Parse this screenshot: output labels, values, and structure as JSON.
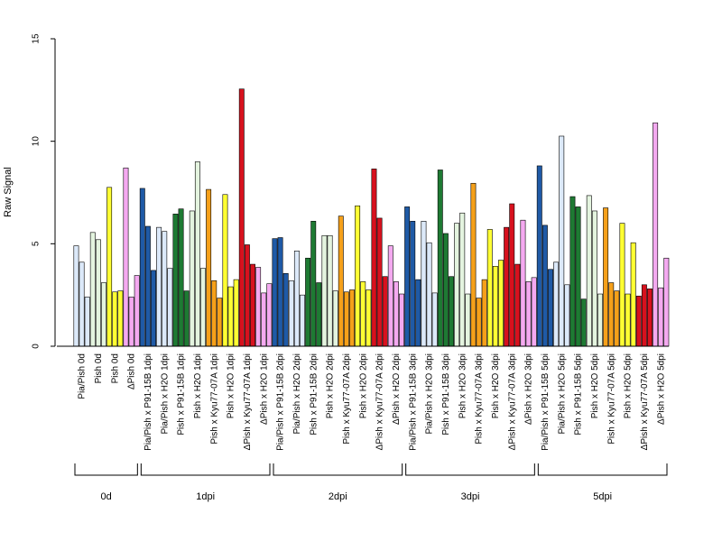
{
  "chart_data": {
    "type": "bar",
    "title": "",
    "xlabel": "",
    "ylabel": "Raw Signal",
    "ylim": [
      0,
      15
    ],
    "yticks": [
      "0",
      "5",
      "10",
      "15"
    ],
    "grid": false,
    "legend": "none",
    "colors": {
      "light_blue": "#dce9f9",
      "dark_blue": "#1f5aa6",
      "light_green": "#e4f4df",
      "dark_green": "#1e7a33",
      "orange": "#f5a01a",
      "yellow": "#ffff33",
      "red": "#d7111e",
      "pink": "#f4a9f0"
    },
    "categories": [
      {
        "label": "Pia/Pish 0d",
        "color": "light_blue",
        "values": [
          4.9,
          4.1,
          2.4
        ]
      },
      {
        "label": "Pish 0d",
        "color": "light_green",
        "values": [
          5.55,
          5.2,
          3.1
        ]
      },
      {
        "label": "Pish 0d",
        "color": "yellow",
        "values": [
          7.75,
          2.65,
          2.7
        ]
      },
      {
        "label": "ΔPish 0d",
        "color": "pink",
        "values": [
          8.7,
          2.4,
          3.45
        ]
      },
      {
        "label": "Pia/Pish x P91-15B 1dpi",
        "color": "dark_blue",
        "values": [
          7.7,
          5.85,
          3.7
        ]
      },
      {
        "label": "Pia/Pish x H2O 1dpi",
        "color": "light_blue",
        "values": [
          5.8,
          5.6,
          3.8
        ]
      },
      {
        "label": "Pish x P91-15B 1dpi",
        "color": "dark_green",
        "values": [
          6.45,
          6.7,
          2.7
        ]
      },
      {
        "label": "Pish x H2O 1dpi",
        "color": "light_green",
        "values": [
          6.6,
          9.0,
          3.8
        ]
      },
      {
        "label": "Pish x Kyu77-07A 1dpi",
        "color": "orange",
        "values": [
          7.65,
          3.2,
          2.35
        ]
      },
      {
        "label": "Pish x H2O 1dpi",
        "color": "yellow",
        "values": [
          7.4,
          2.9,
          3.25
        ]
      },
      {
        "label": "ΔPish x Kyu77-07A 1dpi",
        "color": "red",
        "values": [
          12.55,
          4.95,
          4.0
        ]
      },
      {
        "label": "ΔPish x H2O 1dpi",
        "color": "pink",
        "values": [
          3.85,
          2.6,
          3.05
        ]
      },
      {
        "label": "Pia/Pish x P91-15B 2dpi",
        "color": "dark_blue",
        "values": [
          5.25,
          5.3,
          3.55
        ]
      },
      {
        "label": "Pia/Pish x H2O 2dpi",
        "color": "light_blue",
        "values": [
          3.2,
          4.65,
          2.5
        ]
      },
      {
        "label": "Pish x P91-15B 2dpi",
        "color": "dark_green",
        "values": [
          4.3,
          6.1,
          3.1
        ]
      },
      {
        "label": "Pish x H2O 2dpi",
        "color": "light_green",
        "values": [
          5.4,
          5.4,
          2.7
        ]
      },
      {
        "label": "Pish x Kyu77-07A 2dpi",
        "color": "orange",
        "values": [
          6.35,
          2.65,
          2.75
        ]
      },
      {
        "label": "Pish x H2O 2dpi",
        "color": "yellow",
        "values": [
          6.85,
          3.15,
          2.75
        ]
      },
      {
        "label": "ΔPish x Kyu77-07A 2dpi",
        "color": "red",
        "values": [
          8.65,
          6.25,
          3.4
        ]
      },
      {
        "label": "ΔPish x H2O 2dpi",
        "color": "pink",
        "values": [
          4.9,
          3.15,
          2.55
        ]
      },
      {
        "label": "Pia/Pish x P91-15B 3dpi",
        "color": "dark_blue",
        "values": [
          6.8,
          6.1,
          3.25
        ]
      },
      {
        "label": "Pia/Pish x H2O 3dpi",
        "color": "light_blue",
        "values": [
          6.1,
          5.05,
          2.6
        ]
      },
      {
        "label": "Pish x P91-15B 3dpi",
        "color": "dark_green",
        "values": [
          8.6,
          5.5,
          3.4
        ]
      },
      {
        "label": "Pish x H2O 3dpi",
        "color": "light_green",
        "values": [
          6.0,
          6.5,
          2.55
        ]
      },
      {
        "label": "Pish x Kyu77-07A 3dpi",
        "color": "orange",
        "values": [
          7.95,
          2.35,
          3.25
        ]
      },
      {
        "label": "Pish x H2O 3dpi",
        "color": "yellow",
        "values": [
          5.7,
          3.9,
          4.2
        ]
      },
      {
        "label": "ΔPish x Kyu77-07A 3dpi",
        "color": "red",
        "values": [
          5.8,
          6.95,
          4.0
        ]
      },
      {
        "label": "ΔPish x H2O 3dpi",
        "color": "pink",
        "values": [
          6.15,
          3.15,
          3.35
        ]
      },
      {
        "label": "Pia/Pish x P91-15B 5dpi",
        "color": "dark_blue",
        "values": [
          8.8,
          5.9,
          3.75
        ]
      },
      {
        "label": "Pia/Pish x H2O 5dpi",
        "color": "light_blue",
        "values": [
          4.1,
          10.25,
          3.0
        ]
      },
      {
        "label": "Pish x P91-15B 5dpi",
        "color": "dark_green",
        "values": [
          7.3,
          6.8,
          2.3
        ]
      },
      {
        "label": "Pish x H2O 5dpi",
        "color": "light_green",
        "values": [
          7.35,
          6.6,
          2.55
        ]
      },
      {
        "label": "Pish x Kyu77-07A 5dpi",
        "color": "orange",
        "values": [
          6.75,
          3.1,
          2.7
        ]
      },
      {
        "label": "Pish x H2O 5dpi",
        "color": "yellow",
        "values": [
          6.0,
          2.55,
          5.05
        ]
      },
      {
        "label": "ΔPish x Kyu77-07A 5dpi",
        "color": "red",
        "values": [
          2.45,
          3.0,
          2.8
        ]
      },
      {
        "label": "ΔPish x H2O 5dpi",
        "color": "pink",
        "values": [
          10.9,
          2.85,
          4.3
        ]
      }
    ],
    "groups": [
      {
        "label": "0d",
        "start": 0,
        "end": 3
      },
      {
        "label": "1dpi",
        "start": 4,
        "end": 11
      },
      {
        "label": "2dpi",
        "start": 12,
        "end": 19
      },
      {
        "label": "3dpi",
        "start": 20,
        "end": 27
      },
      {
        "label": "5dpi",
        "start": 28,
        "end": 35
      }
    ]
  }
}
